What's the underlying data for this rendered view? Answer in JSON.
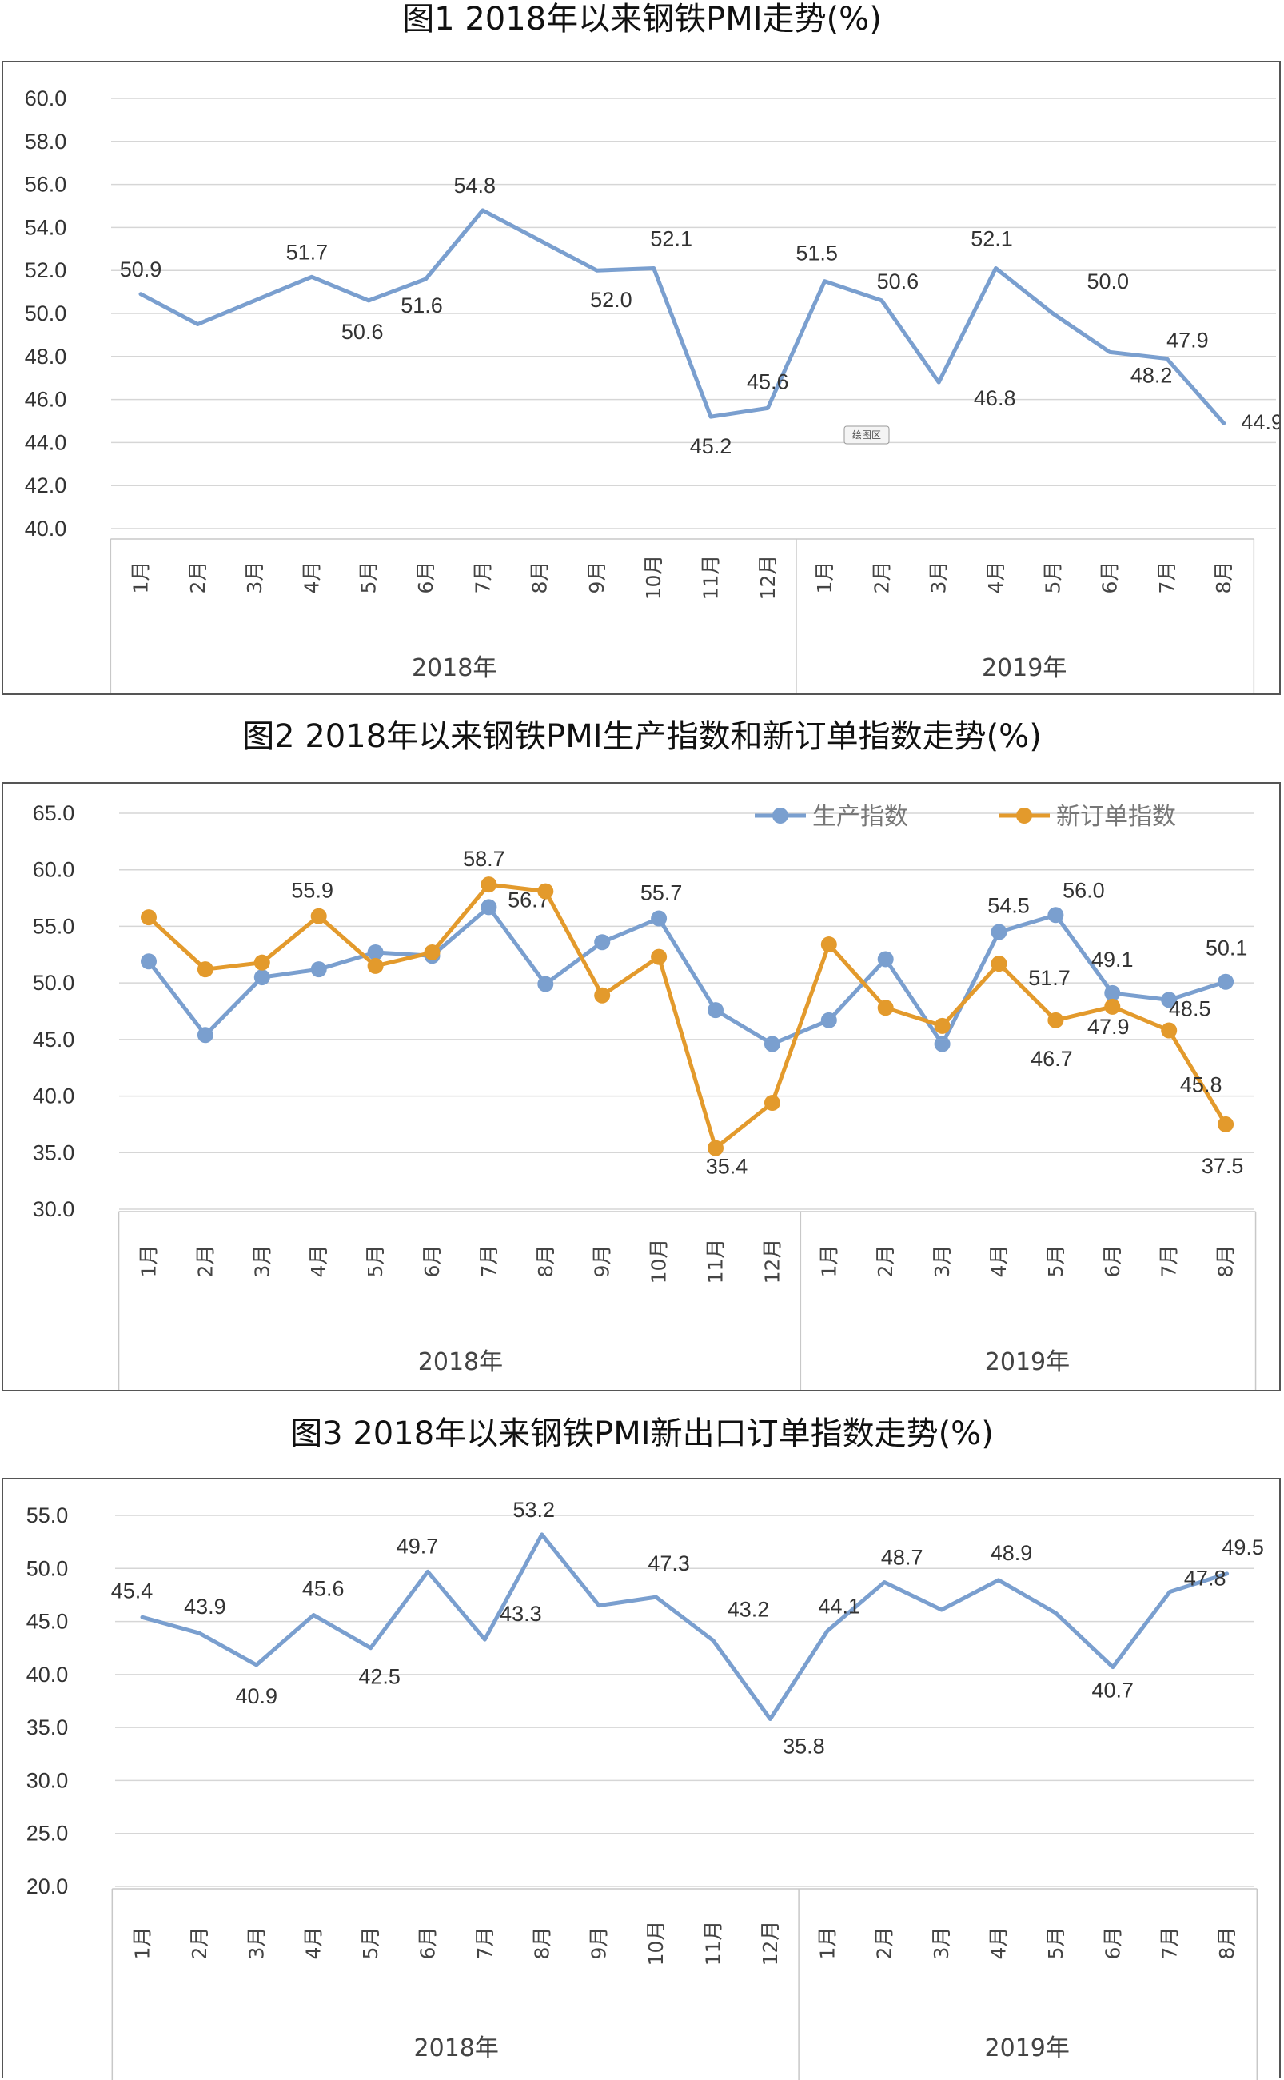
{
  "chart_data": [
    {
      "id": "c1",
      "type": "line",
      "title": "图1 2018年以来钢铁PMI走势(%)",
      "categories": [
        "1月",
        "2月",
        "3月",
        "4月",
        "5月",
        "6月",
        "7月",
        "8月",
        "9月",
        "10月",
        "11月",
        "12月",
        "1月",
        "2月",
        "3月",
        "4月",
        "5月",
        "6月",
        "7月",
        "8月"
      ],
      "groups": [
        {
          "label": "2018年",
          "count": 12
        },
        {
          "label": "2019年",
          "count": 8
        }
      ],
      "ylim": [
        40,
        60
      ],
      "yticks": [
        "40.0",
        "42.0",
        "44.0",
        "46.0",
        "48.0",
        "50.0",
        "52.0",
        "54.0",
        "56.0",
        "58.0",
        "60.0"
      ],
      "grid": true,
      "badge": "绘图区",
      "series": [
        {
          "name": "钢铁PMI",
          "color": "#7a9fcf",
          "markers": false,
          "values": [
            50.9,
            49.5,
            50.6,
            51.7,
            50.6,
            51.6,
            54.8,
            53.4,
            52.0,
            52.1,
            45.2,
            45.6,
            51.5,
            50.6,
            46.8,
            52.1,
            50.0,
            48.2,
            47.9,
            44.9
          ],
          "labels": [
            "50.9",
            null,
            null,
            "51.7",
            "50.6",
            "51.6",
            "54.8",
            null,
            "52.0",
            "52.1",
            "45.2",
            "45.6",
            "51.5",
            "50.6",
            "46.8",
            "52.1",
            "50.0",
            "48.2",
            "47.9",
            "44.9"
          ]
        }
      ]
    },
    {
      "id": "c2",
      "type": "line",
      "title": "图2 2018年以来钢铁PMI生产指数和新订单指数走势(%)",
      "categories": [
        "1月",
        "2月",
        "3月",
        "4月",
        "5月",
        "6月",
        "7月",
        "8月",
        "9月",
        "10月",
        "11月",
        "12月",
        "1月",
        "2月",
        "3月",
        "4月",
        "5月",
        "6月",
        "7月",
        "8月"
      ],
      "groups": [
        {
          "label": "2018年",
          "count": 12
        },
        {
          "label": "2019年",
          "count": 8
        }
      ],
      "ylim": [
        30,
        65
      ],
      "yticks": [
        "30.0",
        "35.0",
        "40.0",
        "45.0",
        "50.0",
        "55.0",
        "60.0",
        "65.0"
      ],
      "grid": true,
      "legend_position": "top-right",
      "series": [
        {
          "name": "生产指数",
          "color": "#7a9fcf",
          "markers": true,
          "values": [
            51.9,
            45.4,
            50.5,
            51.2,
            52.7,
            52.4,
            56.7,
            49.9,
            53.6,
            55.7,
            47.6,
            44.6,
            46.7,
            52.1,
            44.6,
            54.5,
            56.0,
            49.1,
            48.5,
            50.1
          ],
          "labels": [
            null,
            null,
            null,
            null,
            null,
            null,
            "56.7",
            null,
            null,
            "55.7",
            null,
            null,
            null,
            null,
            null,
            "54.5",
            "56.0",
            "49.1",
            "48.5",
            "50.1"
          ]
        },
        {
          "name": "新订单指数",
          "color": "#e39a2c",
          "markers": true,
          "values": [
            55.8,
            51.2,
            51.8,
            55.9,
            51.5,
            52.7,
            58.7,
            58.1,
            48.9,
            52.3,
            35.4,
            39.4,
            53.4,
            47.8,
            46.2,
            51.7,
            46.7,
            47.9,
            45.8,
            37.5
          ],
          "labels": [
            null,
            null,
            null,
            "55.9",
            null,
            null,
            "58.7",
            null,
            null,
            null,
            "35.4",
            null,
            null,
            null,
            null,
            "51.7",
            "46.7",
            "47.9",
            "45.8",
            "37.5"
          ]
        }
      ]
    },
    {
      "id": "c3",
      "type": "line",
      "title": "图3 2018年以来钢铁PMI新出口订单指数走势(%)",
      "categories": [
        "1月",
        "2月",
        "3月",
        "4月",
        "5月",
        "6月",
        "7月",
        "8月",
        "9月",
        "10月",
        "11月",
        "12月",
        "1月",
        "2月",
        "3月",
        "4月",
        "5月",
        "6月",
        "7月",
        "8月"
      ],
      "groups": [
        {
          "label": "2018年",
          "count": 12
        },
        {
          "label": "2019年",
          "count": 8
        }
      ],
      "ylim": [
        20,
        55
      ],
      "yticks": [
        "20.0",
        "25.0",
        "30.0",
        "35.0",
        "40.0",
        "45.0",
        "50.0",
        "55.0"
      ],
      "grid": true,
      "series": [
        {
          "name": "新出口订单指数",
          "color": "#7a9fcf",
          "markers": false,
          "values": [
            45.4,
            43.9,
            40.9,
            45.6,
            42.5,
            49.7,
            43.3,
            53.2,
            46.5,
            47.3,
            43.2,
            35.8,
            44.1,
            48.7,
            46.1,
            48.9,
            45.8,
            40.7,
            47.8,
            49.5
          ],
          "labels": [
            "45.4",
            "43.9",
            "40.9",
            "45.6",
            "42.5",
            "49.7",
            "43.3",
            "53.2",
            null,
            "47.3",
            "43.2",
            "35.8",
            "44.1",
            "48.7",
            null,
            "48.9",
            null,
            "40.7",
            "47.8",
            "49.5"
          ]
        }
      ]
    }
  ]
}
